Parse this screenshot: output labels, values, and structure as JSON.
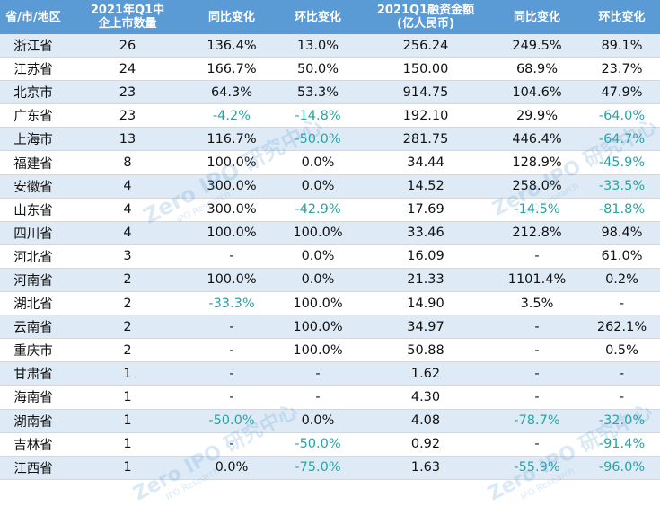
{
  "headers": [
    {
      "l1": "省/市/地区",
      "l2": ""
    },
    {
      "l1": "2021年Q1中",
      "l2": "企上市数量"
    },
    {
      "l1": "同比变化",
      "l2": ""
    },
    {
      "l1": "环比变化",
      "l2": ""
    },
    {
      "l1": "2021Q1融资金额",
      "l2": "(亿人民币)"
    },
    {
      "l1": "同比变化",
      "l2": ""
    },
    {
      "l1": "环比变化",
      "l2": ""
    }
  ],
  "rows": [
    [
      "浙江省",
      "26",
      "136.4%",
      "13.0%",
      "256.24",
      "249.5%",
      "89.1%"
    ],
    [
      "江苏省",
      "24",
      "166.7%",
      "50.0%",
      "150.00",
      "68.9%",
      "23.7%"
    ],
    [
      "北京市",
      "23",
      "64.3%",
      "53.3%",
      "914.75",
      "104.6%",
      "47.9%"
    ],
    [
      "广东省",
      "23",
      "-4.2%",
      "-14.8%",
      "192.10",
      "29.9%",
      "-64.0%"
    ],
    [
      "上海市",
      "13",
      "116.7%",
      "-50.0%",
      "281.75",
      "446.4%",
      "-64.7%"
    ],
    [
      "福建省",
      "8",
      "100.0%",
      "0.0%",
      "34.44",
      "128.9%",
      "-45.9%"
    ],
    [
      "安徽省",
      "4",
      "300.0%",
      "0.0%",
      "14.52",
      "258.0%",
      "-33.5%"
    ],
    [
      "山东省",
      "4",
      "300.0%",
      "-42.9%",
      "17.69",
      "-14.5%",
      "-81.8%"
    ],
    [
      "四川省",
      "4",
      "100.0%",
      "100.0%",
      "33.46",
      "212.8%",
      "98.4%"
    ],
    [
      "河北省",
      "3",
      "-",
      "0.0%",
      "16.09",
      "-",
      "61.0%"
    ],
    [
      "河南省",
      "2",
      "100.0%",
      "0.0%",
      "21.33",
      "1101.4%",
      "0.2%"
    ],
    [
      "湖北省",
      "2",
      "-33.3%",
      "100.0%",
      "14.90",
      "3.5%",
      "-"
    ],
    [
      "云南省",
      "2",
      "-",
      "100.0%",
      "34.97",
      "-",
      "262.1%"
    ],
    [
      "重庆市",
      "2",
      "-",
      "100.0%",
      "50.88",
      "-",
      "0.5%"
    ],
    [
      "甘肃省",
      "1",
      "-",
      "-",
      "1.62",
      "-",
      "-"
    ],
    [
      "海南省",
      "1",
      "-",
      "-",
      "4.30",
      "-",
      "-"
    ],
    [
      "湖南省",
      "1",
      "-50.0%",
      "0.0%",
      "4.08",
      "-78.7%",
      "-32.0%"
    ],
    [
      "吉林省",
      "1",
      "-",
      "-50.0%",
      "0.92",
      "-",
      "-91.4%"
    ],
    [
      "江西省",
      "1",
      "0.0%",
      "-75.0%",
      "1.63",
      "-55.9%",
      "-96.0%"
    ]
  ],
  "watermark": {
    "brand": "Zero IPO 研究中心",
    "sub": "IPO Research"
  },
  "colors": {
    "header_bg": "#5b9bd5",
    "stripe_bg": "#deebf7",
    "negative_text": "#2aa3a3"
  }
}
